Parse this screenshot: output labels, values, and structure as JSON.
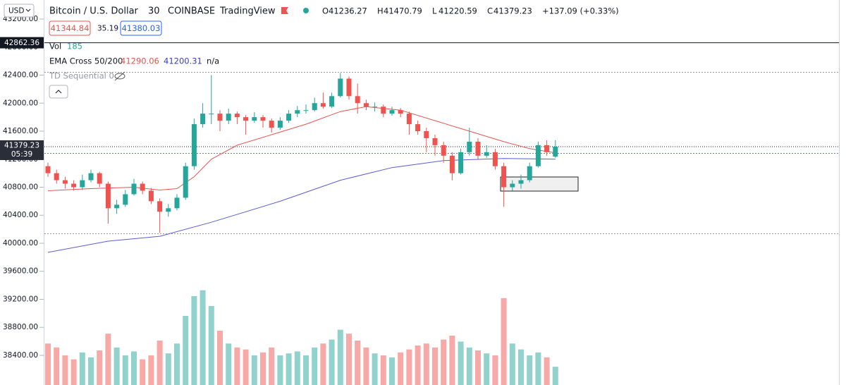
{
  "header": {
    "currency": "USD",
    "symbol": "Bitcoin / U.S. Dollar",
    "interval": "30",
    "exchange": "COINBASE",
    "source": "TradingView",
    "change": "+137.09 (+0.33%)",
    "ohlc_prefixes": [
      "O",
      "H",
      "L",
      "C"
    ],
    "bid": "41344.84",
    "spread": "35.19",
    "ask": "41380.03",
    "volume_label": "Vol",
    "ema_label": "EMA Cross 50/200",
    "ema_extra": "n/a",
    "td_label": "TD Sequential 0",
    "marked_price": "42862.36",
    "countdown": "05:39"
  },
  "chart_data": {
    "type": "candlestick",
    "up_color": "#26a69a",
    "down_color": "#ef5350",
    "ylim": [
      37977,
      43472
    ],
    "yticks": [
      {
        "value": 38400,
        "label": "38400.00"
      },
      {
        "value": 38800,
        "label": "38800.00"
      },
      {
        "value": 39200,
        "label": "39200.00"
      },
      {
        "value": 39600,
        "label": "39600.00"
      },
      {
        "value": 40000,
        "label": "40000.00"
      },
      {
        "value": 40400,
        "label": "40400.00"
      },
      {
        "value": 40800,
        "label": "40800.00"
      },
      {
        "value": 41200,
        "label": "41200.00"
      },
      {
        "value": 41600,
        "label": "41600.00"
      },
      {
        "value": 42000,
        "label": "42000.00"
      },
      {
        "value": 42400,
        "label": "42400.00"
      },
      {
        "value": 42800,
        "label": "42800.00"
      },
      {
        "value": 43200,
        "label": "43200.00"
      }
    ],
    "open": [
      41100,
      41000,
      40900,
      40850,
      40800,
      40900,
      41000,
      40850,
      40500,
      40550,
      40700,
      40850,
      40750,
      40600,
      40450,
      40500,
      40650,
      41100,
      41700,
      41850,
      41850,
      41750,
      41850,
      41800,
      41750,
      41800,
      41750,
      41650,
      41750,
      41850,
      41900,
      41900,
      42000,
      41950,
      42100,
      42350,
      42100,
      42000,
      41950,
      41950,
      41850,
      41900,
      41850,
      41700,
      41600,
      41500,
      41400,
      41250,
      41000,
      41300,
      41450,
      41250,
      41300,
      41100,
      40800,
      40850,
      40900,
      41100,
      41400,
      41236.27
    ],
    "high": [
      41150,
      41050,
      40950,
      40900,
      40980,
      41050,
      41020,
      40880,
      40620,
      40760,
      40920,
      40880,
      40790,
      40640,
      40560,
      40700,
      41150,
      41780,
      42000,
      42400,
      41900,
      41920,
      41880,
      41830,
      41870,
      41830,
      41780,
      41800,
      41900,
      41960,
      41980,
      42080,
      42150,
      42150,
      42430,
      42380,
      42280,
      42050,
      42010,
      41980,
      41950,
      41930,
      41880,
      41750,
      41650,
      41550,
      41450,
      41300,
      41350,
      41650,
      41500,
      41400,
      41350,
      41150,
      40900,
      40980,
      41150,
      41450,
      41470,
      41470.79
    ],
    "low": [
      40950,
      40850,
      40780,
      40750,
      40760,
      40870,
      40800,
      40280,
      40420,
      40520,
      40680,
      40700,
      40560,
      40150,
      40380,
      40470,
      40620,
      41050,
      41650,
      41700,
      41600,
      41700,
      41700,
      41550,
      41720,
      41650,
      41580,
      41620,
      41720,
      41800,
      41850,
      41880,
      41920,
      41930,
      42080,
      42050,
      41850,
      41900,
      41880,
      41800,
      41820,
      41800,
      41550,
      41550,
      41300,
      41250,
      41150,
      40900,
      40980,
      41250,
      41200,
      41220,
      41050,
      40520,
      40750,
      40780,
      40870,
      41080,
      41250,
      41220.59
    ],
    "close": [
      41000,
      40900,
      40850,
      40800,
      40900,
      41000,
      40850,
      40500,
      40550,
      40700,
      40850,
      40750,
      40600,
      40450,
      40500,
      40650,
      41100,
      41700,
      41850,
      41850,
      41750,
      41850,
      41800,
      41750,
      41800,
      41750,
      41650,
      41750,
      41850,
      41900,
      41900,
      42000,
      41950,
      42100,
      42350,
      42100,
      42000,
      41950,
      41950,
      41850,
      41900,
      41850,
      41700,
      41600,
      41500,
      41400,
      41250,
      41000,
      41300,
      41450,
      41250,
      41300,
      41100,
      40800,
      40850,
      40900,
      41100,
      41400,
      41300,
      41379.23
    ],
    "volume": [
      420,
      380,
      300,
      260,
      330,
      280,
      350,
      520,
      380,
      300,
      340,
      260,
      300,
      450,
      320,
      420,
      700,
      900,
      960,
      800,
      550,
      420,
      380,
      360,
      300,
      330,
      380,
      300,
      320,
      340,
      300,
      380,
      420,
      460,
      560,
      520,
      450,
      380,
      320,
      300,
      280,
      330,
      360,
      400,
      420,
      380,
      460,
      500,
      440,
      380,
      350,
      320,
      300,
      880,
      420,
      360,
      300,
      330,
      280,
      185
    ],
    "volume_ylim": [
      0,
      1000
    ],
    "ema_fast": {
      "color": "#e8544e",
      "x": [
        0,
        5,
        10,
        13,
        15,
        17,
        19,
        22,
        26,
        30,
        34,
        37,
        41,
        45,
        49,
        53,
        56,
        59
      ],
      "values": [
        40750,
        40780,
        40800,
        40760,
        40780,
        40950,
        41200,
        41400,
        41550,
        41700,
        41880,
        41950,
        41900,
        41750,
        41600,
        41450,
        41350,
        41290.06
      ]
    },
    "ema_slow": {
      "color": "#5b5bd6",
      "x": [
        0,
        7,
        13,
        19,
        27,
        34,
        40,
        46,
        53,
        59
      ],
      "values": [
        39870,
        40030,
        40100,
        40300,
        40600,
        40900,
        41080,
        41180,
        41210,
        41200.31
      ]
    }
  }
}
